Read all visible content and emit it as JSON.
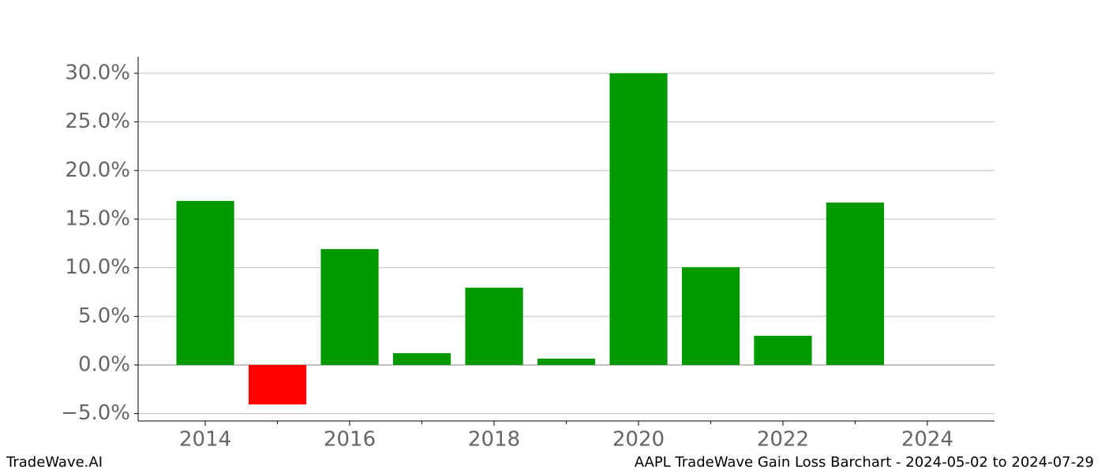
{
  "chart_data": {
    "type": "bar",
    "x": [
      2014,
      2015,
      2016,
      2017,
      2018,
      2019,
      2020,
      2021,
      2022,
      2023
    ],
    "values": [
      16.87,
      -4.06,
      11.92,
      1.22,
      7.95,
      0.65,
      30.0,
      10.06,
      3.0,
      16.71
    ],
    "colors": [
      "#009900",
      "#ff0000",
      "#009900",
      "#009900",
      "#009900",
      "#009900",
      "#009900",
      "#009900",
      "#009900",
      "#009900"
    ],
    "xlim": [
      2013.07,
      2024.93
    ],
    "xticks": [
      2014,
      2016,
      2018,
      2020,
      2022,
      2024
    ],
    "xminorticks": [
      2015,
      2017,
      2019,
      2021,
      2023
    ],
    "ylim": [
      -5.76,
      31.7
    ],
    "yticks": [
      {
        "value": -5,
        "label": "−5.0%"
      },
      {
        "value": 0,
        "label": "0.0%"
      },
      {
        "value": 5,
        "label": "5.0%"
      },
      {
        "value": 10,
        "label": "10.0%"
      },
      {
        "value": 15,
        "label": "15.0%"
      },
      {
        "value": 20,
        "label": "20.0%"
      },
      {
        "value": 25,
        "label": "25.0%"
      },
      {
        "value": 30,
        "label": "30.0%"
      }
    ],
    "grid": true,
    "footer_left": "TradeWave.AI",
    "footer_right": "AAPL TradeWave Gain Loss Barchart - 2024-05-02 to 2024-07-29"
  }
}
